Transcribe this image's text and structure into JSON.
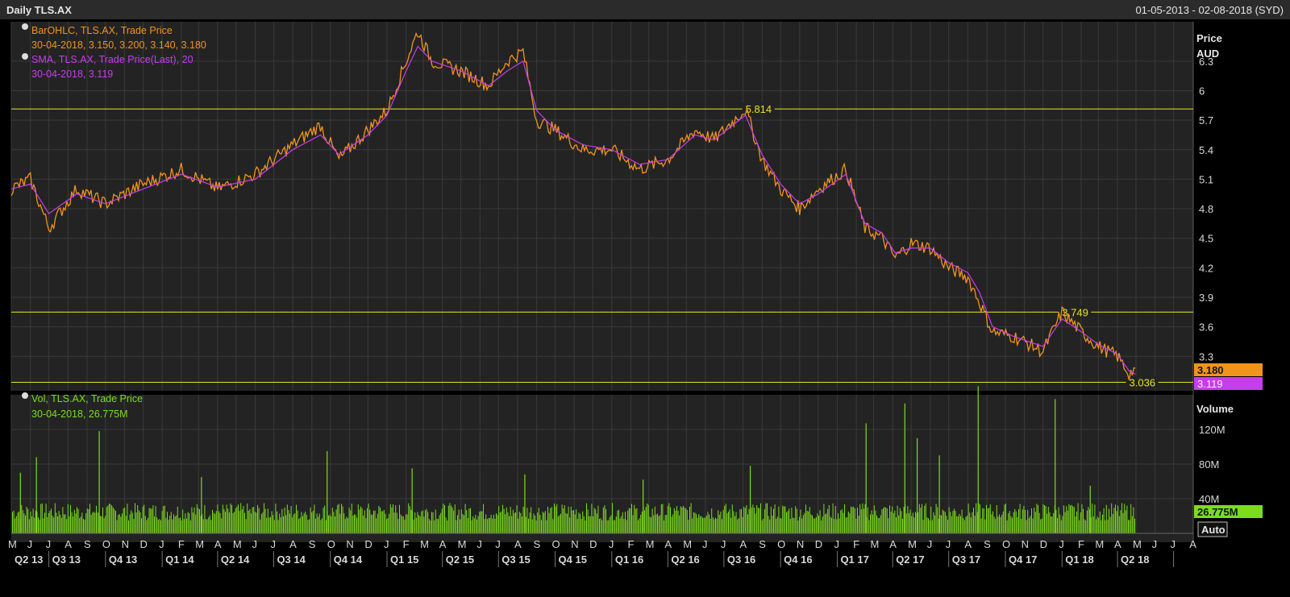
{
  "window": {
    "title": "Daily TLS.AX",
    "date_range": "01-05-2013 - 02-08-2018 (SYD)"
  },
  "legend": {
    "ohlc_name": "BarOHLC, TLS.AX, Trade Price",
    "ohlc_values": "30-04-2018, 3.150, 3.200, 3.140, 3.180",
    "sma_name": "SMA, TLS.AX, Trade Price(Last), 20",
    "sma_values": "30-04-2018, 3.119",
    "vol_name": "Vol, TLS.AX, Trade Price",
    "vol_values": "30-04-2018, 26.775M"
  },
  "colors": {
    "price": "#f0941c",
    "sma": "#c83cf0",
    "volume": "#7ddc1f",
    "level": "#e6e61e",
    "grid": "#3a3a3a",
    "panel": "#232323",
    "axis_text": "#d8d8d8"
  },
  "auto_button": "Auto",
  "chart_data": [
    {
      "type": "line",
      "axis_title": "Price",
      "axis_unit": "AUD",
      "ylim": [
        2.95,
        6.7
      ],
      "yticks": [
        "3.3",
        "3.6",
        "3.9",
        "4.2",
        "4.5",
        "4.8",
        "5.1",
        "5.4",
        "5.7",
        "6",
        "6.3"
      ],
      "x": [
        "2013-05-01",
        "2013-06-01",
        "2013-07-01",
        "2013-08-15",
        "2013-10-01",
        "2013-12-01",
        "2014-02-01",
        "2014-04-01",
        "2014-06-01",
        "2014-08-01",
        "2014-09-15",
        "2014-10-15",
        "2014-12-01",
        "2015-01-01",
        "2015-02-01",
        "2015-02-20",
        "2015-03-15",
        "2015-05-01",
        "2015-06-15",
        "2015-07-15",
        "2015-08-10",
        "2015-09-01",
        "2015-10-01",
        "2015-11-15",
        "2016-01-01",
        "2016-02-15",
        "2016-04-01",
        "2016-05-15",
        "2016-06-15",
        "2016-08-05",
        "2016-09-01",
        "2016-10-01",
        "2016-11-01",
        "2016-12-01",
        "2017-01-15",
        "2017-02-15",
        "2017-03-15",
        "2017-04-05",
        "2017-05-01",
        "2017-06-01",
        "2017-07-01",
        "2017-08-01",
        "2017-08-20",
        "2017-09-10",
        "2017-10-15",
        "2017-12-01",
        "2018-01-01",
        "2018-02-01",
        "2018-03-01",
        "2018-04-01",
        "2018-04-20",
        "2018-04-30"
      ],
      "series": [
        {
          "values": [
            5.0,
            5.1,
            4.6,
            5.0,
            4.85,
            5.05,
            5.2,
            5.0,
            5.15,
            5.45,
            5.65,
            5.3,
            5.6,
            5.8,
            6.3,
            6.6,
            6.3,
            6.2,
            6.05,
            6.3,
            6.4,
            5.7,
            5.6,
            5.4,
            5.4,
            5.2,
            5.3,
            5.6,
            5.5,
            5.814,
            5.3,
            5.0,
            4.8,
            5.0,
            5.2,
            4.6,
            4.5,
            4.3,
            4.45,
            4.4,
            4.2,
            4.1,
            3.85,
            3.55,
            3.5,
            3.35,
            3.749,
            3.55,
            3.4,
            3.3,
            3.12,
            3.18
          ]
        },
        {
          "values": [
            5.0,
            5.05,
            4.75,
            4.95,
            4.85,
            5.0,
            5.15,
            5.02,
            5.1,
            5.4,
            5.55,
            5.35,
            5.55,
            5.75,
            6.2,
            6.45,
            6.3,
            6.2,
            6.05,
            6.2,
            6.3,
            5.8,
            5.6,
            5.45,
            5.4,
            5.25,
            5.3,
            5.55,
            5.5,
            5.75,
            5.35,
            5.05,
            4.85,
            4.95,
            5.15,
            4.65,
            4.55,
            4.35,
            4.4,
            4.4,
            4.25,
            4.15,
            3.95,
            3.6,
            3.5,
            3.4,
            3.68,
            3.55,
            3.42,
            3.32,
            3.15,
            3.119
          ]
        }
      ],
      "levels": [
        {
          "value": 5.814,
          "label": "5.814",
          "date": "2016-08-05"
        },
        {
          "value": 3.749,
          "label": "3.749",
          "date": "2018-01-01"
        },
        {
          "value": 3.036,
          "label": "3.036",
          "date": "2018-04-20"
        }
      ],
      "last_price": "3.180",
      "last_sma": "3.119"
    },
    {
      "type": "bar",
      "axis_title": "Volume",
      "ylim": [
        0,
        160
      ],
      "yticks": [
        "40M",
        "80M",
        "120M"
      ],
      "baseline": 27,
      "spikes": [
        {
          "date": "2013-05-15",
          "value": 70
        },
        {
          "date": "2013-06-10",
          "value": 88
        },
        {
          "date": "2013-09-20",
          "value": 118
        },
        {
          "date": "2014-03-05",
          "value": 65
        },
        {
          "date": "2014-09-25",
          "value": 95
        },
        {
          "date": "2015-02-10",
          "value": 75
        },
        {
          "date": "2015-08-12",
          "value": 68
        },
        {
          "date": "2016-08-12",
          "value": 78
        },
        {
          "date": "2016-02-20",
          "value": 62
        },
        {
          "date": "2017-02-16",
          "value": 127
        },
        {
          "date": "2017-04-20",
          "value": 150
        },
        {
          "date": "2017-05-10",
          "value": 110
        },
        {
          "date": "2017-06-15",
          "value": 90
        },
        {
          "date": "2017-08-17",
          "value": 170
        },
        {
          "date": "2017-12-20",
          "value": 155
        },
        {
          "date": "2018-02-15",
          "value": 55
        }
      ],
      "last_volume": "26.775M"
    }
  ],
  "time_axis": {
    "months": [
      "M",
      "J",
      "J",
      "A",
      "S",
      "O",
      "N",
      "D",
      "J",
      "F",
      "M",
      "A",
      "M",
      "J",
      "J",
      "A",
      "S",
      "O",
      "N",
      "D",
      "J",
      "F",
      "M",
      "A",
      "M",
      "J",
      "J",
      "A",
      "S",
      "O",
      "N",
      "D",
      "J",
      "F",
      "M",
      "A",
      "M",
      "J",
      "J",
      "A",
      "S",
      "O",
      "N",
      "D",
      "J",
      "F",
      "M",
      "A",
      "M",
      "J",
      "J",
      "A",
      "S",
      "O",
      "N",
      "D",
      "J",
      "F",
      "M",
      "A",
      "M",
      "J",
      "J",
      "A"
    ],
    "quarters": [
      "Q2 13",
      "Q3 13",
      "Q4 13",
      "Q1 14",
      "Q2 14",
      "Q3 14",
      "Q4 14",
      "Q1 15",
      "Q2 15",
      "Q3 15",
      "Q4 15",
      "Q1 16",
      "Q2 16",
      "Q3 16",
      "Q4 16",
      "Q1 17",
      "Q2 17",
      "Q3 17",
      "Q4 17",
      "Q1 18",
      "Q2 18"
    ]
  }
}
